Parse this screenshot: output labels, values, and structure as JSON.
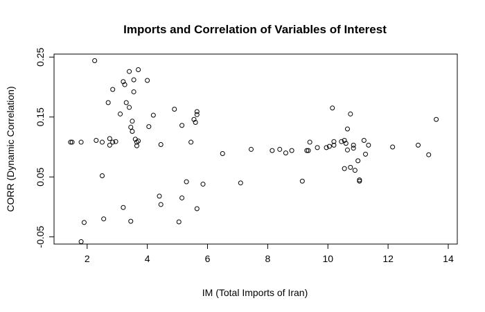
{
  "chart_data": {
    "type": "scatter",
    "title": "Imports and Correlation of Variables of Interest",
    "xlabel": "IM (Total Imports of Iran)",
    "ylabel": "CORR (Dynamic Correlation)",
    "xlim": [
      0.9,
      14.3
    ],
    "ylim": [
      -0.062,
      0.255
    ],
    "x_ticks": [
      2,
      4,
      6,
      8,
      10,
      12,
      14
    ],
    "x_tick_labels": [
      "2",
      "4",
      "6",
      "8",
      "10",
      "12",
      "14"
    ],
    "y_ticks": [
      -0.05,
      0.05,
      0.15,
      0.25
    ],
    "y_tick_labels": [
      "-0.05",
      "0.05",
      "0.15",
      "0.25"
    ],
    "grid": false,
    "points": [
      {
        "x": 1.45,
        "y": 0.108
      },
      {
        "x": 1.5,
        "y": 0.108
      },
      {
        "x": 1.8,
        "y": 0.108
      },
      {
        "x": 1.9,
        "y": -0.026
      },
      {
        "x": 1.8,
        "y": -0.058
      },
      {
        "x": 2.25,
        "y": 0.244
      },
      {
        "x": 2.3,
        "y": 0.111
      },
      {
        "x": 2.5,
        "y": 0.108
      },
      {
        "x": 2.5,
        "y": 0.052
      },
      {
        "x": 2.55,
        "y": -0.02
      },
      {
        "x": 2.7,
        "y": 0.174
      },
      {
        "x": 2.75,
        "y": 0.114
      },
      {
        "x": 2.75,
        "y": 0.103
      },
      {
        "x": 2.85,
        "y": 0.196
      },
      {
        "x": 2.85,
        "y": 0.108
      },
      {
        "x": 2.95,
        "y": 0.109
      },
      {
        "x": 3.1,
        "y": 0.155
      },
      {
        "x": 3.2,
        "y": 0.209
      },
      {
        "x": 3.25,
        "y": 0.204
      },
      {
        "x": 3.3,
        "y": 0.174
      },
      {
        "x": 3.2,
        "y": -0.001
      },
      {
        "x": 3.4,
        "y": 0.226
      },
      {
        "x": 3.4,
        "y": 0.166
      },
      {
        "x": 3.45,
        "y": 0.133
      },
      {
        "x": 3.5,
        "y": 0.143
      },
      {
        "x": 3.5,
        "y": 0.126
      },
      {
        "x": 3.55,
        "y": 0.212
      },
      {
        "x": 3.55,
        "y": 0.192
      },
      {
        "x": 3.6,
        "y": 0.113
      },
      {
        "x": 3.65,
        "y": 0.108
      },
      {
        "x": 3.65,
        "y": 0.102
      },
      {
        "x": 3.7,
        "y": 0.229
      },
      {
        "x": 3.7,
        "y": 0.11
      },
      {
        "x": 3.45,
        "y": -0.024
      },
      {
        "x": 4.0,
        "y": 0.211
      },
      {
        "x": 4.05,
        "y": 0.134
      },
      {
        "x": 4.2,
        "y": 0.153
      },
      {
        "x": 4.4,
        "y": 0.018
      },
      {
        "x": 4.45,
        "y": 0.104
      },
      {
        "x": 4.45,
        "y": 0.004
      },
      {
        "x": 4.9,
        "y": 0.163
      },
      {
        "x": 5.05,
        "y": -0.025
      },
      {
        "x": 5.15,
        "y": 0.136
      },
      {
        "x": 5.15,
        "y": 0.015
      },
      {
        "x": 5.3,
        "y": 0.042
      },
      {
        "x": 5.45,
        "y": 0.108
      },
      {
        "x": 5.55,
        "y": 0.146
      },
      {
        "x": 5.6,
        "y": 0.141
      },
      {
        "x": 5.65,
        "y": 0.159
      },
      {
        "x": 5.65,
        "y": 0.154
      },
      {
        "x": 5.65,
        "y": -0.003
      },
      {
        "x": 5.85,
        "y": 0.038
      },
      {
        "x": 6.5,
        "y": 0.089
      },
      {
        "x": 7.1,
        "y": 0.04
      },
      {
        "x": 7.45,
        "y": 0.096
      },
      {
        "x": 8.15,
        "y": 0.094
      },
      {
        "x": 8.4,
        "y": 0.096
      },
      {
        "x": 8.6,
        "y": 0.09
      },
      {
        "x": 8.8,
        "y": 0.094
      },
      {
        "x": 9.15,
        "y": 0.043
      },
      {
        "x": 9.3,
        "y": 0.094
      },
      {
        "x": 9.35,
        "y": 0.094
      },
      {
        "x": 9.4,
        "y": 0.108
      },
      {
        "x": 9.65,
        "y": 0.099
      },
      {
        "x": 9.95,
        "y": 0.099
      },
      {
        "x": 10.05,
        "y": 0.101
      },
      {
        "x": 10.15,
        "y": 0.165
      },
      {
        "x": 10.2,
        "y": 0.103
      },
      {
        "x": 10.2,
        "y": 0.109
      },
      {
        "x": 10.45,
        "y": 0.109
      },
      {
        "x": 10.55,
        "y": 0.111
      },
      {
        "x": 10.55,
        "y": 0.064
      },
      {
        "x": 10.6,
        "y": 0.106
      },
      {
        "x": 10.65,
        "y": 0.13
      },
      {
        "x": 10.65,
        "y": 0.095
      },
      {
        "x": 10.75,
        "y": 0.155
      },
      {
        "x": 10.75,
        "y": 0.066
      },
      {
        "x": 10.85,
        "y": 0.103
      },
      {
        "x": 10.85,
        "y": 0.098
      },
      {
        "x": 10.9,
        "y": 0.061
      },
      {
        "x": 11.0,
        "y": 0.077
      },
      {
        "x": 11.05,
        "y": 0.045
      },
      {
        "x": 11.05,
        "y": 0.043
      },
      {
        "x": 11.2,
        "y": 0.111
      },
      {
        "x": 11.25,
        "y": 0.088
      },
      {
        "x": 11.35,
        "y": 0.103
      },
      {
        "x": 12.15,
        "y": 0.1
      },
      {
        "x": 13.0,
        "y": 0.103
      },
      {
        "x": 13.35,
        "y": 0.087
      },
      {
        "x": 13.6,
        "y": 0.146
      }
    ]
  }
}
